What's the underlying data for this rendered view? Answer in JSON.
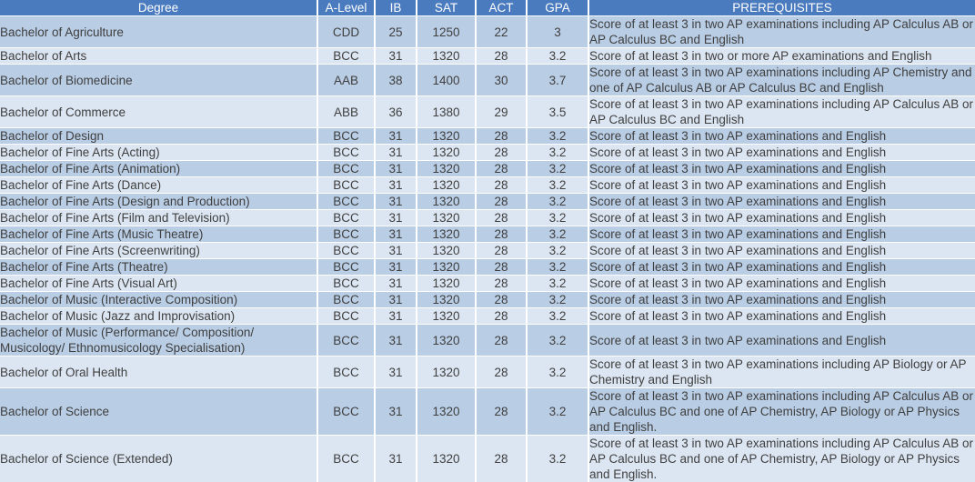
{
  "colors": {
    "header_bg": "#4a7bbf",
    "header_text": "#ffffff",
    "row_odd_bg": "#b9cde5",
    "row_even_bg": "#dce6f2",
    "body_text": "#3f3f3f",
    "grid": "#ffffff"
  },
  "table": {
    "columns": {
      "degree": "Degree",
      "a_level": "A-Level",
      "ib": "IB",
      "sat": "SAT",
      "act": "ACT",
      "gpa": "GPA",
      "prerequisites": "PREREQUISITES"
    },
    "rows": [
      {
        "degree": "Bachelor of Agriculture",
        "a_level": "CDD",
        "ib": "25",
        "sat": "1250",
        "act": "22",
        "gpa": "3",
        "prerequisites": "Score of at least 3 in two AP examinations including AP Calculus AB or AP Calculus BC and English"
      },
      {
        "degree": "Bachelor of Arts",
        "a_level": "BCC",
        "ib": "31",
        "sat": "1320",
        "act": "28",
        "gpa": "3.2",
        "prerequisites": "Score of at least 3 in two or more AP examinations and English"
      },
      {
        "degree": "Bachelor of Biomedicine",
        "a_level": "AAB",
        "ib": "38",
        "sat": "1400",
        "act": "30",
        "gpa": "3.7",
        "prerequisites": "Score of at least 3 in two AP examinations including AP Chemistry and one of AP Calculus AB or AP Calculus BC and English"
      },
      {
        "degree": "Bachelor of Commerce",
        "a_level": "ABB",
        "ib": "36",
        "sat": "1380",
        "act": "29",
        "gpa": "3.5",
        "prerequisites": "Score of at least 3 in two AP examinations including AP Calculus AB or AP Calculus BC and English"
      },
      {
        "degree": "Bachelor of Design",
        "a_level": "BCC",
        "ib": "31",
        "sat": "1320",
        "act": "28",
        "gpa": "3.2",
        "prerequisites": "Score of at least 3 in two AP examinations and English"
      },
      {
        "degree": "Bachelor of Fine Arts (Acting)",
        "a_level": "BCC",
        "ib": "31",
        "sat": "1320",
        "act": "28",
        "gpa": "3.2",
        "prerequisites": "Score of at least 3 in two AP examinations and English"
      },
      {
        "degree": "Bachelor of Fine Arts (Animation)",
        "a_level": "BCC",
        "ib": "31",
        "sat": "1320",
        "act": "28",
        "gpa": "3.2",
        "prerequisites": "Score of at least 3 in two AP examinations and English"
      },
      {
        "degree": "Bachelor of Fine Arts (Dance)",
        "a_level": "BCC",
        "ib": "31",
        "sat": "1320",
        "act": "28",
        "gpa": "3.2",
        "prerequisites": "Score of at least 3 in two AP examinations and English"
      },
      {
        "degree": "Bachelor of Fine Arts (Design and Production)",
        "a_level": "BCC",
        "ib": "31",
        "sat": "1320",
        "act": "28",
        "gpa": "3.2",
        "prerequisites": "Score of at least 3 in two AP examinations and English"
      },
      {
        "degree": "Bachelor of Fine Arts (Film and Television)",
        "a_level": "BCC",
        "ib": "31",
        "sat": "1320",
        "act": "28",
        "gpa": "3.2",
        "prerequisites": "Score of at least 3 in two AP examinations and English"
      },
      {
        "degree": "Bachelor of Fine Arts (Music Theatre)",
        "a_level": "BCC",
        "ib": "31",
        "sat": "1320",
        "act": "28",
        "gpa": "3.2",
        "prerequisites": "Score of at least 3 in two AP examinations and English"
      },
      {
        "degree": "Bachelor of Fine Arts (Screenwriting)",
        "a_level": "BCC",
        "ib": "31",
        "sat": "1320",
        "act": "28",
        "gpa": "3.2",
        "prerequisites": "Score of at least 3 in two AP examinations and English"
      },
      {
        "degree": "Bachelor of Fine Arts (Theatre)",
        "a_level": "BCC",
        "ib": "31",
        "sat": "1320",
        "act": "28",
        "gpa": "3.2",
        "prerequisites": "Score of at least 3 in two AP examinations and English"
      },
      {
        "degree": "Bachelor of Fine Arts (Visual Art)",
        "a_level": "BCC",
        "ib": "31",
        "sat": "1320",
        "act": "28",
        "gpa": "3.2",
        "prerequisites": "Score of at least 3 in two AP examinations and English"
      },
      {
        "degree": "Bachelor of Music (Interactive Composition)",
        "a_level": "BCC",
        "ib": "31",
        "sat": "1320",
        "act": "28",
        "gpa": "3.2",
        "prerequisites": "Score of at least 3 in two AP examinations and English"
      },
      {
        "degree": "Bachelor of Music (Jazz and Improvisation)",
        "a_level": "BCC",
        "ib": "31",
        "sat": "1320",
        "act": "28",
        "gpa": "3.2",
        "prerequisites": "Score of at least 3 in two AP examinations and English"
      },
      {
        "degree": "Bachelor of Music (Performance/ Composition/ Musicology/ Ethnomusicology Specialisation)",
        "a_level": "BCC",
        "ib": "31",
        "sat": "1320",
        "act": "28",
        "gpa": "3.2",
        "prerequisites": "Score of at least 3 in two AP examinations and English"
      },
      {
        "degree": "Bachelor of Oral Health",
        "a_level": "BCC",
        "ib": "31",
        "sat": "1320",
        "act": "28",
        "gpa": "3.2",
        "prerequisites": "Score of at least 3 in two AP examinations including AP Biology or AP Chemistry and English"
      },
      {
        "degree": "Bachelor of Science",
        "a_level": "BCC",
        "ib": "31",
        "sat": "1320",
        "act": "28",
        "gpa": "3.2",
        "prerequisites": "Score of at least 3 in two AP examinations including AP Calculus AB or AP Calculus BC and one of AP Chemistry, AP Biology or AP Physics and English."
      },
      {
        "degree": "Bachelor of Science (Extended)",
        "a_level": "BCC",
        "ib": "31",
        "sat": "1320",
        "act": "28",
        "gpa": "3.2",
        "prerequisites": "Score of at least 3 in two AP examinations including AP Calculus AB or AP Calculus BC and one of AP Chemistry, AP Biology or AP Physics and English."
      }
    ]
  }
}
